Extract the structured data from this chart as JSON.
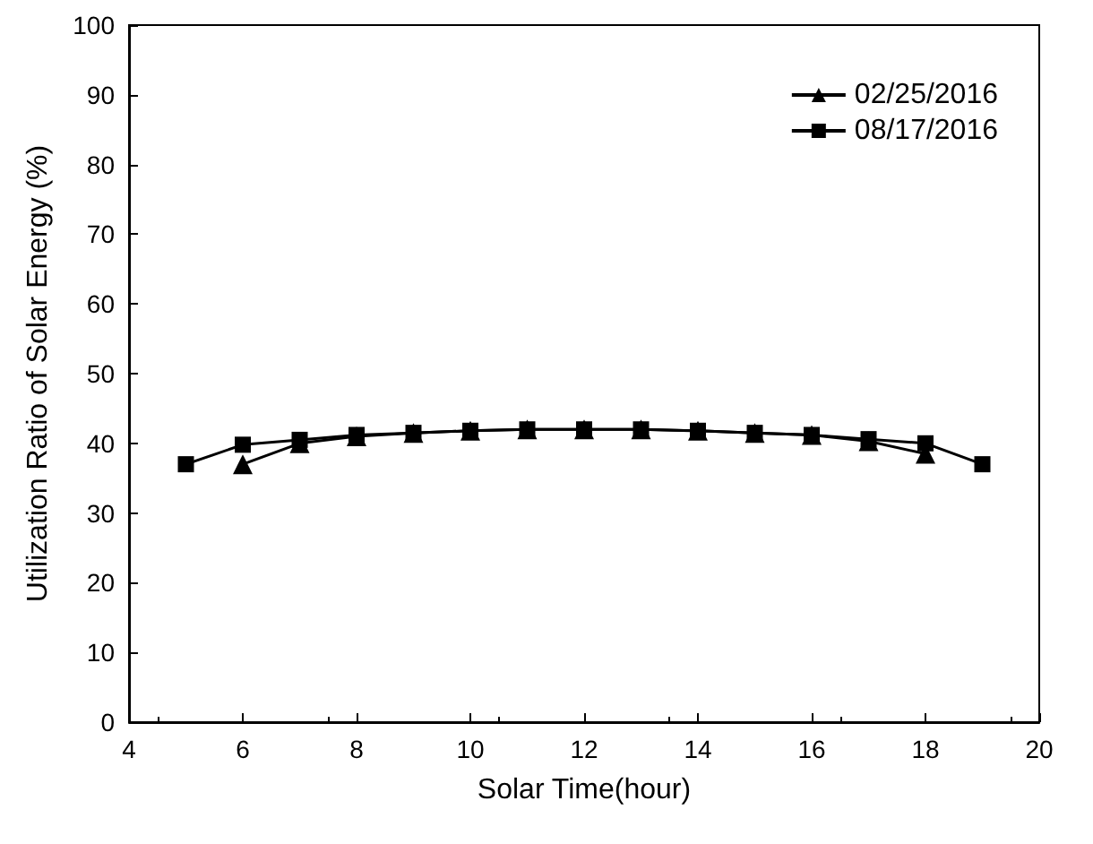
{
  "chart_data": {
    "type": "line",
    "xlabel": "Solar Time(hour)",
    "ylabel": "Utilization Ratio of Solar Energy (%)",
    "xlim": [
      4,
      20
    ],
    "xticks": [
      4,
      6,
      8,
      10,
      12,
      14,
      16,
      18,
      20
    ],
    "ylim": [
      0,
      100
    ],
    "yticks": [
      0,
      10,
      20,
      30,
      40,
      50,
      60,
      70,
      80,
      90,
      100
    ],
    "legend": "top right",
    "grid": false,
    "series": [
      {
        "name": "02/25/2016",
        "color": "#000000",
        "marker": "triangle",
        "x": [
          6,
          7,
          8,
          9,
          10,
          11,
          12,
          13,
          14,
          15,
          16,
          17,
          18
        ],
        "values": [
          37,
          40,
          41,
          41.5,
          41.8,
          42,
          42,
          42,
          41.8,
          41.5,
          41.2,
          40.3,
          38.5
        ]
      },
      {
        "name": "08/17/2016",
        "color": "#000000",
        "marker": "square",
        "x": [
          5,
          6,
          7,
          8,
          9,
          10,
          11,
          12,
          13,
          14,
          15,
          16,
          17,
          18,
          19
        ],
        "values": [
          37,
          39.8,
          40.5,
          41.2,
          41.5,
          41.8,
          42,
          42,
          42,
          41.8,
          41.5,
          41.2,
          40.6,
          40,
          37
        ]
      }
    ]
  }
}
